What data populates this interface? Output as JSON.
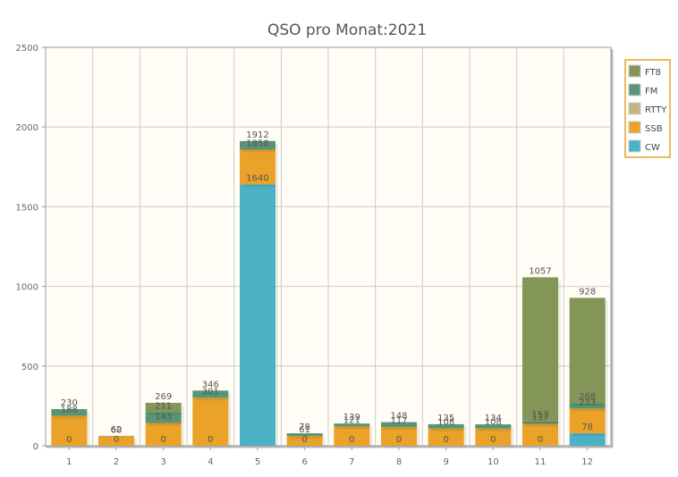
{
  "chart_data": {
    "type": "bar",
    "stacked": true,
    "title": "QSO pro Monat:2021",
    "xlabel": "",
    "ylabel": "",
    "categories": [
      "1",
      "2",
      "3",
      "4",
      "5",
      "6",
      "7",
      "8",
      "9",
      "10",
      "11",
      "12"
    ],
    "ylim": [
      0,
      2500
    ],
    "yticks": [
      "0",
      "500",
      "1000",
      "1500",
      "2000",
      "2500"
    ],
    "grid": true,
    "legend_position": "top-right",
    "series": [
      {
        "name": "CW",
        "color": "#4bb2c5",
        "values": [
          0,
          0,
          0,
          0,
          1640,
          0,
          0,
          0,
          0,
          0,
          0,
          78
        ]
      },
      {
        "name": "SSB",
        "color": "#eaa228",
        "values": [
          188,
          60,
          143,
          301,
          218,
          61,
          121,
          117,
          108,
          108,
          137,
          155
        ]
      },
      {
        "name": "RTTY",
        "color": "#c5b47f",
        "values": [
          0,
          0,
          0,
          0,
          0,
          0,
          0,
          0,
          0,
          0,
          0,
          0
        ]
      },
      {
        "name": "FM",
        "color": "#579575",
        "values": [
          42,
          2,
          68,
          45,
          54,
          17,
          18,
          31,
          27,
          26,
          16,
          35
        ]
      },
      {
        "name": "FT8",
        "color": "#839557",
        "values": [
          0,
          0,
          58,
          0,
          0,
          0,
          0,
          0,
          0,
          0,
          904,
          660
        ]
      }
    ],
    "labels": [
      {
        "series": 0,
        "texts": [
          "0",
          "0",
          "0",
          "0",
          "1640",
          "0",
          "0",
          "0",
          "0",
          "0",
          "0",
          "78"
        ]
      },
      {
        "series": 1,
        "texts": [
          "188",
          "60",
          "143",
          "301",
          "1858",
          "61",
          "121",
          "117",
          "108",
          "108",
          "137",
          "233"
        ]
      },
      {
        "series": 3,
        "texts": [
          "230",
          "62",
          "211",
          "346",
          "1912",
          "78",
          "139",
          "148",
          "135",
          "134",
          "153",
          "268"
        ]
      },
      {
        "series": 4,
        "texts": [
          "",
          "",
          "269",
          "",
          "",
          "",
          "",
          "",
          "",
          "",
          "1057",
          "928"
        ]
      }
    ]
  }
}
